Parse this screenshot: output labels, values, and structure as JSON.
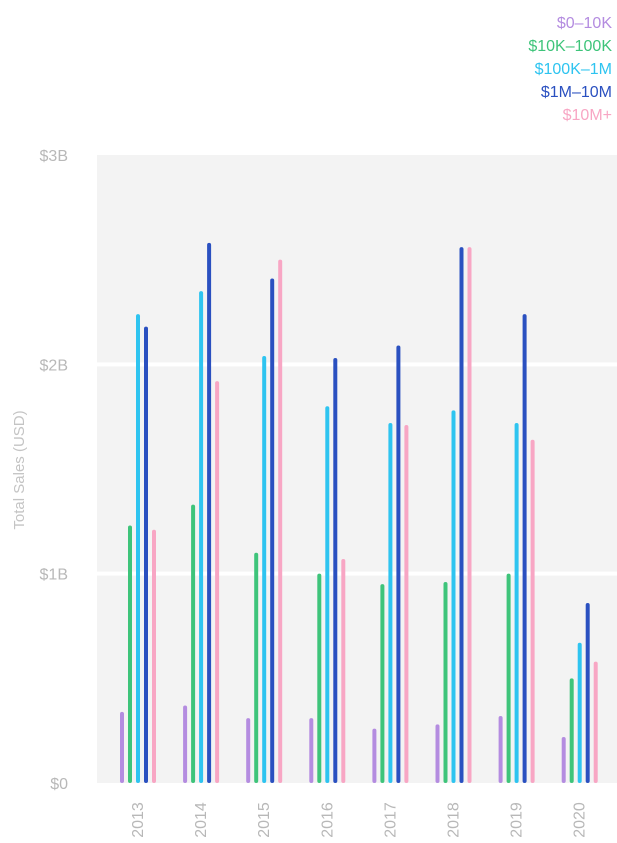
{
  "chart_data": {
    "type": "bar",
    "title": "",
    "xlabel": "",
    "ylabel": "Total Sales (USD)",
    "categories": [
      "2013",
      "2014",
      "2015",
      "2016",
      "2017",
      "2018",
      "2019",
      "2020"
    ],
    "ylim": [
      0,
      3
    ],
    "y_unit": "billions USD",
    "yticks": [
      {
        "value": 0,
        "label": "$0"
      },
      {
        "value": 1,
        "label": "$1B"
      },
      {
        "value": 2,
        "label": "$2B"
      },
      {
        "value": 3,
        "label": "$3B"
      }
    ],
    "grid": "horizontal",
    "legend_position": "top-right",
    "series": [
      {
        "name": "$0–10K",
        "color": "#b48ce0",
        "values": [
          0.34,
          0.37,
          0.31,
          0.31,
          0.26,
          0.28,
          0.32,
          0.22
        ]
      },
      {
        "name": "$10K–100K",
        "color": "#3ec47a",
        "values": [
          1.23,
          1.33,
          1.1,
          1.0,
          0.95,
          0.96,
          1.0,
          0.5
        ]
      },
      {
        "name": "$100K–1M",
        "color": "#2ec4f0",
        "values": [
          2.24,
          2.35,
          2.04,
          1.8,
          1.72,
          1.78,
          1.72,
          0.67
        ]
      },
      {
        "name": "$1M–10M",
        "color": "#2a50c0",
        "values": [
          2.18,
          2.58,
          2.41,
          2.03,
          2.09,
          2.56,
          2.24,
          0.86
        ]
      },
      {
        "name": "$10M+",
        "color": "#f8a6c4",
        "values": [
          1.21,
          1.92,
          2.5,
          1.07,
          1.71,
          2.56,
          1.64,
          0.58
        ]
      }
    ]
  },
  "colors": {
    "plot_background": "#f3f3f3",
    "gridline": "#ffffff",
    "tick_text": "#b8b8b8",
    "axis_title": "#c4c4c4"
  }
}
